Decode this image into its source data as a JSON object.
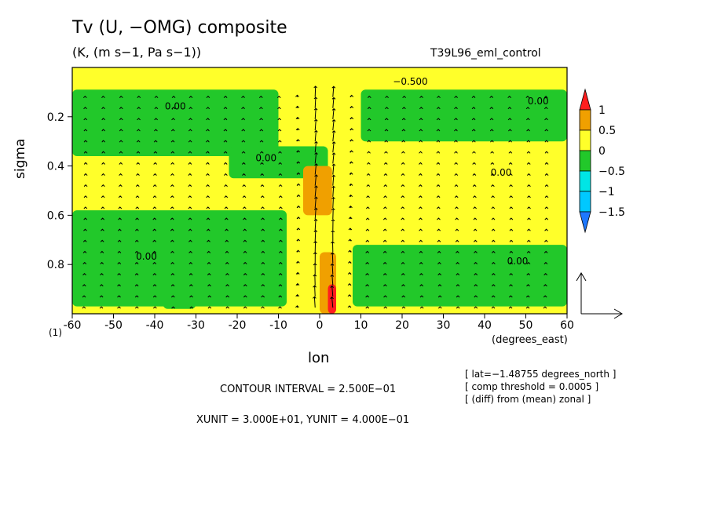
{
  "title": "Tv (U, −OMG) composite",
  "subtitle": "(K, (m s−1, Pa s−1))",
  "run_name": "T39L96_eml_control",
  "contour_interval_text": "CONTOUR INTERVAL = 2.500E−01",
  "units_text": "XUNIT = 3.000E+01, YUNIT = 4.000E−01",
  "info_lines": [
    "[ lat=−1.48755 degrees_north ]",
    "[ comp threshold = 0.0005 ]",
    "[ (diff) from (mean) zonal ]"
  ],
  "colors": {
    "lt_neg1_5": "#1e78ff",
    "neg1_5_to_neg1": "#00c8ff",
    "neg1_to_neg0_5": "#00e5e5",
    "neg0_5_to_0": "#22c82a",
    "zero_to_0_5": "#ffff2a",
    "half_to_1": "#f0a000",
    "gt_1": "#ff1e1e"
  },
  "chart_data": {
    "type": "heatmap",
    "title": "Tv (U, −OMG) composite",
    "subtitle": "(K, (m s−1, Pa s−1))",
    "xlabel": "lon",
    "x_units": "(degrees_east)",
    "x_extra_label": "(1)",
    "ylabel": "sigma",
    "xlim": [
      -60,
      60
    ],
    "ylim": [
      1.0,
      0.0
    ],
    "x_ticks": [
      -60,
      -50,
      -40,
      -30,
      -20,
      -10,
      0,
      10,
      20,
      30,
      40,
      50,
      60
    ],
    "y_ticks": [
      0.2,
      0.4,
      0.6,
      0.8
    ],
    "colorbar": {
      "levels": [
        -1.5,
        -1,
        -0.5,
        0,
        0.5,
        1
      ],
      "labels": [
        "1",
        "0.5",
        "0",
        "−0.5",
        "−1",
        "−1.5"
      ]
    },
    "contour_labels": [
      {
        "text": "0.00",
        "lon": -35,
        "sigma": 0.17
      },
      {
        "text": "0.00",
        "lon": -13,
        "sigma": 0.38
      },
      {
        "text": "0.00",
        "lon": 44,
        "sigma": 0.44
      },
      {
        "text": "0.00",
        "lon": 53,
        "sigma": 0.15
      },
      {
        "text": "0.00",
        "lon": -42,
        "sigma": 0.78
      },
      {
        "text": "0.00",
        "lon": 48,
        "sigma": 0.8
      },
      {
        "text": "−0.500",
        "lon": 22,
        "sigma": 0.07
      }
    ],
    "field": {
      "background": 0.3,
      "regions": [
        {
          "lon": [
            -60,
            60
          ],
          "sigma": [
            0.0,
            0.07
          ],
          "value": 0.1
        },
        {
          "lon": [
            -60,
            60
          ],
          "sigma": [
            0.07,
            0.09
          ],
          "value": 0.3
        },
        {
          "lon": [
            -60,
            -10
          ],
          "sigma": [
            0.09,
            0.36
          ],
          "value": -0.2
        },
        {
          "lon": [
            10,
            60
          ],
          "sigma": [
            0.09,
            0.3
          ],
          "value": -0.2
        },
        {
          "lon": [
            -22,
            2
          ],
          "sigma": [
            0.32,
            0.45
          ],
          "value": -0.2
        },
        {
          "lon": [
            -38,
            -30
          ],
          "sigma": [
            0.75,
            0.98
          ],
          "value": -0.2
        },
        {
          "lon": [
            -60,
            -8
          ],
          "sigma": [
            0.58,
            0.97
          ],
          "value": -0.2
        },
        {
          "lon": [
            8,
            60
          ],
          "sigma": [
            0.72,
            0.97
          ],
          "value": -0.2
        },
        {
          "lon": [
            -4,
            3
          ],
          "sigma": [
            0.4,
            0.6
          ],
          "value": 0.7
        },
        {
          "lon": [
            0,
            4
          ],
          "sigma": [
            0.75,
            1.0
          ],
          "value": 0.7
        },
        {
          "lon": [
            2,
            4
          ],
          "sigma": [
            0.88,
            1.0
          ],
          "value": 1.2
        }
      ]
    },
    "vector_ref": {
      "xunit": 30.0,
      "yunit": 0.4
    }
  }
}
